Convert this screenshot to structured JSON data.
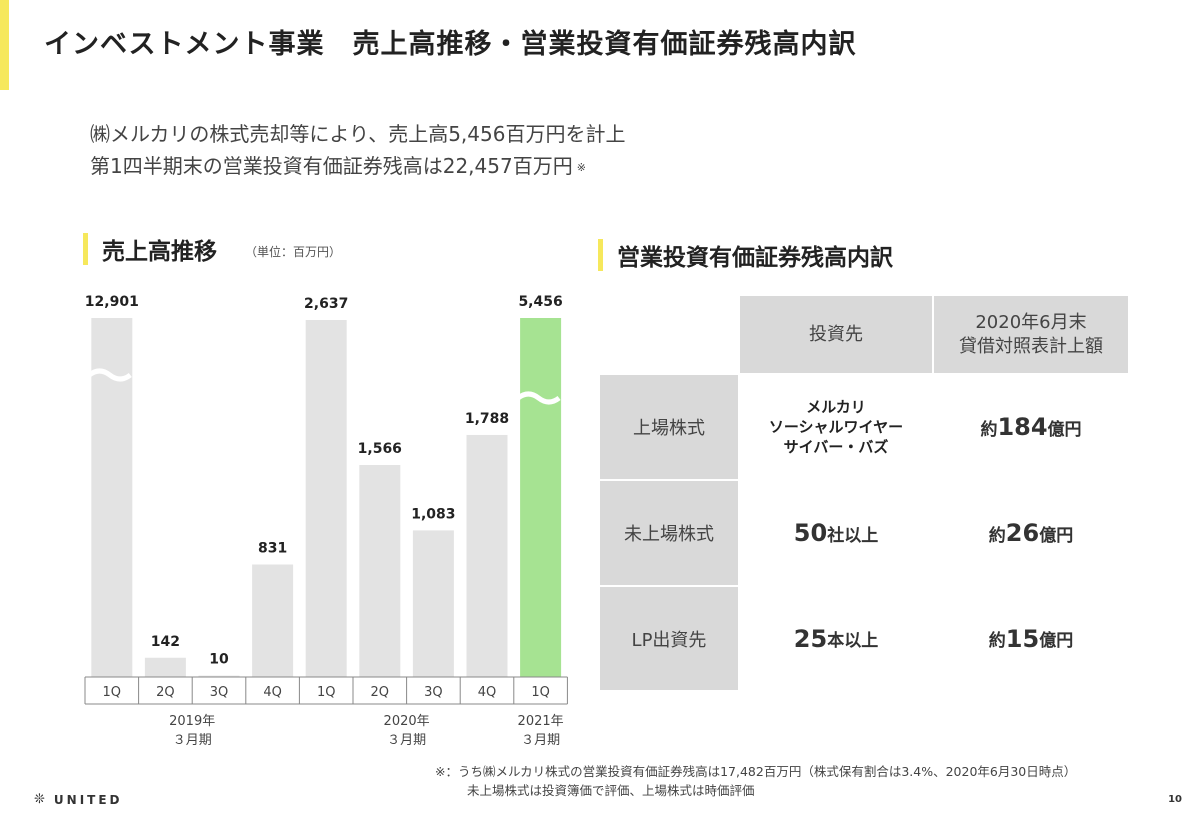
{
  "title": "インベストメント事業　売上高推移・営業投資有価証券残高内訳",
  "summary": {
    "line1": "㈱メルカリの株式売却等により、売上高5,456百万円を計上",
    "line2": "第1四半期末の営業投資有価証券残高は22,457百万円",
    "line2_mark": "※"
  },
  "sales_section": {
    "heading": "売上高推移",
    "unit": "（単位：百万円）"
  },
  "securities_section": {
    "heading": "営業投資有価証券残高内訳"
  },
  "chart_data": {
    "type": "bar",
    "categories": [
      "1Q",
      "2Q",
      "3Q",
      "4Q",
      "1Q",
      "2Q",
      "3Q",
      "4Q",
      "1Q"
    ],
    "values": [
      12901,
      142,
      10,
      831,
      2637,
      1566,
      1083,
      1788,
      5456
    ],
    "value_labels": [
      "12,901",
      "142",
      "10",
      "831",
      "2,637",
      "1,566",
      "1,083",
      "1,788",
      "5,456"
    ],
    "broken": [
      true,
      false,
      false,
      false,
      false,
      false,
      false,
      false,
      true
    ],
    "highlight_index": 8,
    "groups": [
      {
        "year": "2019年",
        "period": "３月期"
      },
      {
        "year": "2020年",
        "period": "３月期"
      },
      {
        "year": "2021年",
        "period": "３月期"
      }
    ],
    "colors": {
      "bar": "#e3e3e3",
      "highlight": "#a6e392",
      "axis": "#888888"
    }
  },
  "table": {
    "header": {
      "col1": "投資先",
      "col2_line1": "2020年6月末",
      "col2_line2": "貸借対照表計上額"
    },
    "rows": [
      {
        "label": "上場株式",
        "detail_lines": [
          "メルカリ",
          "ソーシャルワイヤー",
          "サイバー・バズ"
        ],
        "amount_prefix": "約",
        "amount_num": "184",
        "amount_suffix": "億円"
      },
      {
        "label": "未上場株式",
        "count_num": "50",
        "count_suffix": "社以上",
        "amount_prefix": "約",
        "amount_num": "26",
        "amount_suffix": "億円"
      },
      {
        "label": "LP出資先",
        "count_num": "25",
        "count_suffix": "本以上",
        "amount_prefix": "約",
        "amount_num": "15",
        "amount_suffix": "億円"
      }
    ]
  },
  "footnote": {
    "line1": "※：うち㈱メルカリ株式の営業投資有価証券残高は17,482百万円（株式保有割合は3.4%、2020年6月30日時点）",
    "line2": "未上場株式は投資簿価で評価、上場株式は時価評価"
  },
  "logo": {
    "symbol": "❊",
    "text": "UNITED"
  },
  "page_number": "10"
}
